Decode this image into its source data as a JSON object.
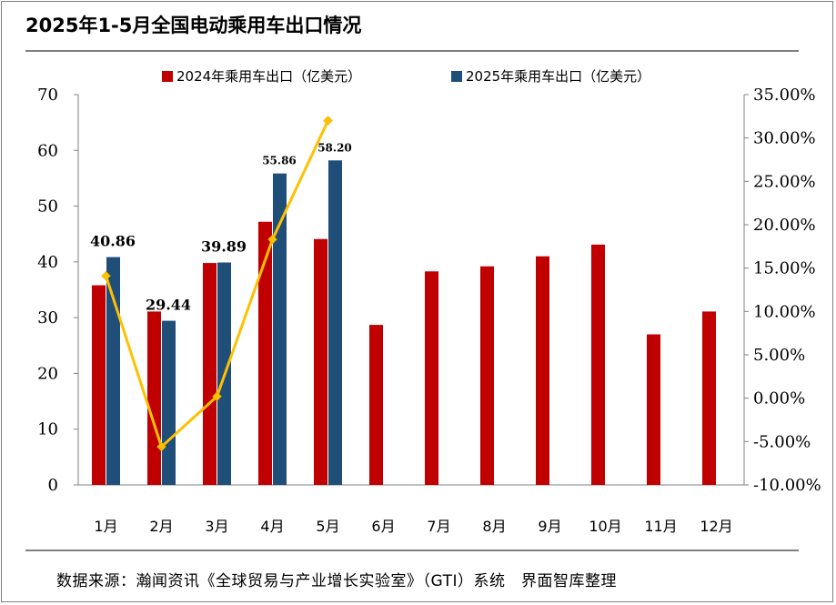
{
  "title": "2025年1-5月全国电动乘用车出口情况",
  "source": "数据来源：瀚闻资讯《全球贸易与产业增长实验室》（GTI）系统　界面智库整理",
  "colors": {
    "s2024": "#c00000",
    "s2025": "#1f4e79",
    "growth": "#ffc000"
  },
  "chart_data": {
    "type": "bar",
    "categories": [
      "1月",
      "2月",
      "3月",
      "4月",
      "5月",
      "6月",
      "7月",
      "8月",
      "9月",
      "10月",
      "11月",
      "12月"
    ],
    "series": [
      {
        "name": "2024年乘用车出口（亿美元）",
        "axis": "left",
        "values": [
          35.8,
          31.1,
          39.8,
          47.2,
          44.1,
          28.7,
          38.3,
          39.2,
          41.0,
          43.1,
          27.0,
          31.1
        ]
      },
      {
        "name": "2025年乘用车出口（亿美元）",
        "axis": "left",
        "values": [
          40.86,
          29.44,
          39.89,
          55.86,
          58.2,
          null,
          null,
          null,
          null,
          null,
          null,
          null
        ],
        "labels": [
          "40.86",
          "29.44",
          "39.89",
          "55.86",
          "58.20"
        ]
      },
      {
        "type": "line",
        "axis": "right",
        "values": [
          14.1,
          -5.6,
          0.2,
          18.3,
          32.0,
          null,
          null,
          null,
          null,
          null,
          null,
          null
        ]
      }
    ],
    "ylim": [
      0,
      70
    ],
    "yticks": [
      "0",
      "10",
      "20",
      "30",
      "40",
      "50",
      "60",
      "70"
    ],
    "y2lim": [
      -10,
      35
    ],
    "y2ticks": [
      "-10.00%",
      "-5.00%",
      "0.00%",
      "5.00%",
      "10.00%",
      "15.00%",
      "20.00%",
      "25.00%",
      "30.00%",
      "35.00%"
    ],
    "legend": "top",
    "grid": false
  }
}
